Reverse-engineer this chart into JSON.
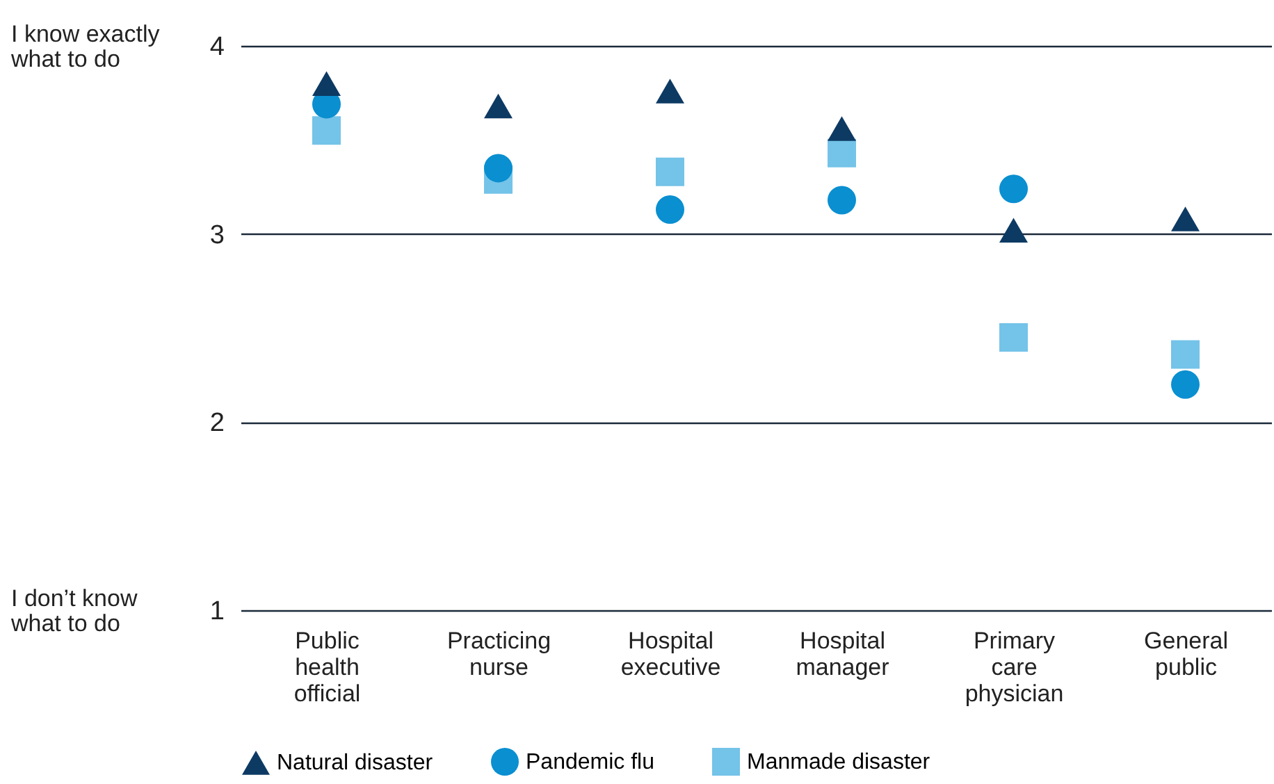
{
  "chart_data": {
    "type": "scatter",
    "categories": [
      "Public health official",
      "Practicing nurse",
      "Hospital executive",
      "Hospital manager",
      "Primary care physician",
      "General public"
    ],
    "series": [
      {
        "name": "Natural disaster",
        "color": "#0d3a63",
        "marker": "triangle",
        "values": [
          3.8,
          3.68,
          3.76,
          3.56,
          3.02,
          3.08
        ]
      },
      {
        "name": "Pandemic flu",
        "color": "#0a8fd0",
        "marker": "circle",
        "values": [
          3.69,
          3.35,
          3.13,
          3.18,
          3.24,
          2.2
        ]
      },
      {
        "name": "Manmade disaster",
        "color": "#74c3e8",
        "marker": "square",
        "values": [
          3.55,
          3.29,
          3.33,
          3.43,
          2.45,
          2.36
        ]
      }
    ],
    "ylim": [
      1,
      4
    ],
    "yticks": [
      1,
      2,
      3,
      4
    ],
    "grid": "y",
    "legend": "bottom",
    "annotations": [
      "I know exactly what to do",
      "I don’t know what to do"
    ]
  }
}
